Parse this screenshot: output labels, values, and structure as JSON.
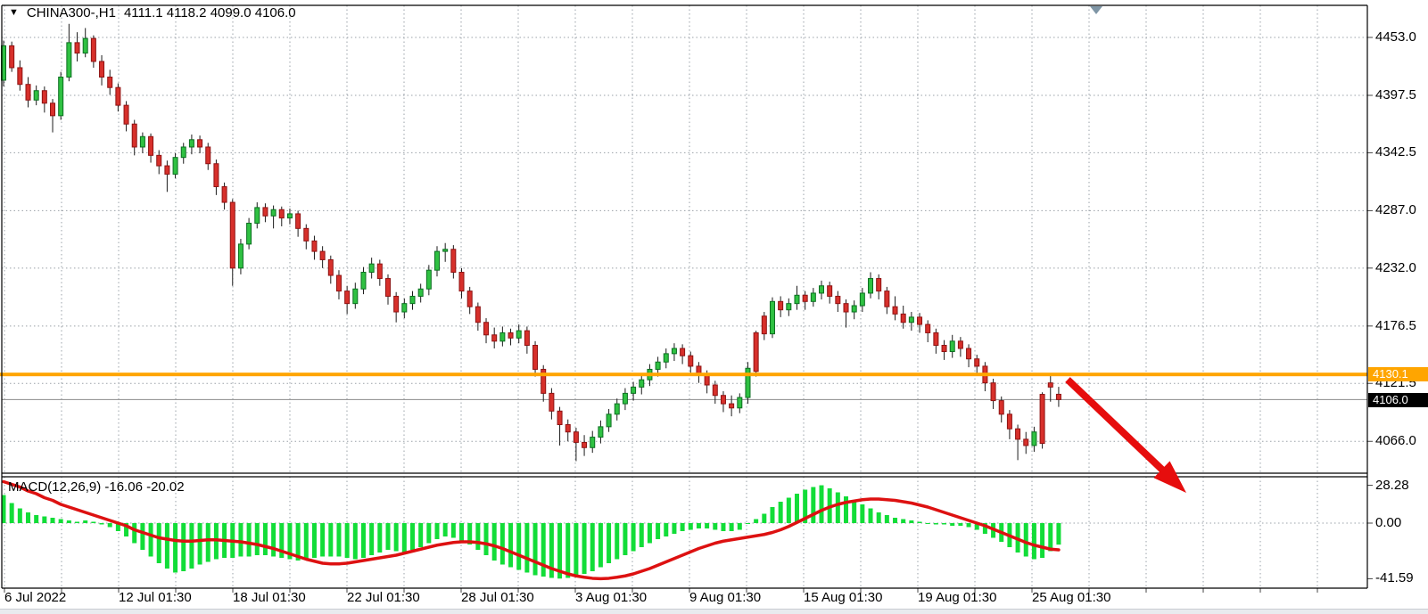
{
  "window": {
    "symbol_period": "CHINA300-,H1",
    "ohlc_text": "4111.1 4118.2 4099.0 4106.0",
    "dropdown_icon": "triangle-down"
  },
  "indicator": {
    "name": "MACD(12,26,9)",
    "values_text": "-16.06 -20.02"
  },
  "badges": {
    "hline_price": "4130.1",
    "last_price": "4106.0"
  },
  "price_axis": {
    "labels": [
      "4453.0",
      "4397.5",
      "4342.5",
      "4287.0",
      "4232.0",
      "4176.5",
      "4121.5",
      "4066.0"
    ]
  },
  "macd_axis": {
    "labels": [
      "28.28",
      "0.00",
      "-41.59"
    ]
  },
  "time_axis": {
    "labels": [
      "6 Jul 2022",
      "12 Jul 01:30",
      "18 Jul 01:30",
      "22 Jul 01:30",
      "28 Jul 01:30",
      "3 Aug 01:30",
      "9 Aug 01:30",
      "15 Aug 01:30",
      "19 Aug 01:30",
      "25 Aug 01:30"
    ]
  },
  "colors": {
    "bull": "#2fc142",
    "bull_stroke": "#0b6e20",
    "bear": "#d7302b",
    "bear_stroke": "#8e1212",
    "wick": "#1c1c1c",
    "macd_hist": "#12dd38",
    "signal": "#dd1111",
    "hline": "#ffa500",
    "last_price_line": "#8a8a8a",
    "grid": "#9aa1a8",
    "border": "#000000",
    "arrow": "#e60d0d",
    "scroll_marker": "#7e95a5",
    "badge_black_bg": "#000000",
    "badge_orange_bg": "#ffa500"
  },
  "chart_data": {
    "type": "candlestick+macd",
    "symbol": "CHINA300-",
    "timeframe": "H1",
    "title": "CHINA300-,H1",
    "legend": [
      "MACD histogram",
      "MACD signal"
    ],
    "grid": "dashed",
    "last_ohlc": {
      "open": 4111.1,
      "high": 4118.2,
      "low": 4099.0,
      "close": 4106.0
    },
    "hline_price": 4130.1,
    "last_price": 4106.0,
    "price_gridlines": [
      4453.0,
      4397.5,
      4342.5,
      4287.0,
      4232.0,
      4176.5,
      4121.5,
      4066.0
    ],
    "price_axis_range": [
      4035,
      4480
    ],
    "macd_levels": {
      "max": 28.28,
      "zero": 0.0,
      "min": -41.59
    },
    "macd_last": {
      "main": -16.06,
      "signal": -20.02
    },
    "x_labels": [
      "6 Jul 2022",
      "12 Jul 01:30",
      "18 Jul 01:30",
      "22 Jul 01:30",
      "28 Jul 01:30",
      "3 Aug 01:30",
      "9 Aug 01:30",
      "15 Aug 01:30",
      "19 Aug 01:30",
      "25 Aug 01:30"
    ],
    "candles": [
      [
        4412,
        4450,
        4406,
        4445
      ],
      [
        4445,
        4449,
        4420,
        4424
      ],
      [
        4424,
        4431,
        4402,
        4408
      ],
      [
        4408,
        4415,
        4386,
        4393
      ],
      [
        4393,
        4407,
        4388,
        4402
      ],
      [
        4402,
        4406,
        4381,
        4390
      ],
      [
        4390,
        4394,
        4362,
        4378
      ],
      [
        4378,
        4420,
        4374,
        4415
      ],
      [
        4415,
        4466,
        4411,
        4448
      ],
      [
        4448,
        4458,
        4430,
        4438
      ],
      [
        4438,
        4462,
        4434,
        4452
      ],
      [
        4452,
        4455,
        4424,
        4430
      ],
      [
        4430,
        4436,
        4407,
        4415
      ],
      [
        4415,
        4422,
        4398,
        4405
      ],
      [
        4405,
        4409,
        4382,
        4388
      ],
      [
        4388,
        4392,
        4363,
        4370
      ],
      [
        4370,
        4374,
        4340,
        4348
      ],
      [
        4348,
        4362,
        4342,
        4358
      ],
      [
        4358,
        4361,
        4333,
        4340
      ],
      [
        4340,
        4345,
        4322,
        4330
      ],
      [
        4330,
        4335,
        4305,
        4322
      ],
      [
        4322,
        4342,
        4318,
        4338
      ],
      [
        4338,
        4352,
        4332,
        4348
      ],
      [
        4348,
        4360,
        4341,
        4355
      ],
      [
        4355,
        4359,
        4342,
        4348
      ],
      [
        4348,
        4352,
        4326,
        4332
      ],
      [
        4332,
        4336,
        4302,
        4310
      ],
      [
        4310,
        4314,
        4288,
        4295
      ],
      [
        4295,
        4298,
        4215,
        4232
      ],
      [
        4232,
        4260,
        4226,
        4255
      ],
      [
        4255,
        4280,
        4250,
        4275
      ],
      [
        4275,
        4295,
        4270,
        4290
      ],
      [
        4290,
        4294,
        4276,
        4282
      ],
      [
        4282,
        4292,
        4270,
        4288
      ],
      [
        4288,
        4291,
        4272,
        4280
      ],
      [
        4280,
        4289,
        4274,
        4284
      ],
      [
        4284,
        4287,
        4262,
        4270
      ],
      [
        4270,
        4274,
        4250,
        4258
      ],
      [
        4258,
        4263,
        4240,
        4248
      ],
      [
        4248,
        4253,
        4232,
        4240
      ],
      [
        4240,
        4244,
        4217,
        4225
      ],
      [
        4225,
        4230,
        4202,
        4210
      ],
      [
        4210,
        4215,
        4188,
        4198
      ],
      [
        4198,
        4218,
        4193,
        4212
      ],
      [
        4212,
        4233,
        4207,
        4228
      ],
      [
        4228,
        4242,
        4222,
        4236
      ],
      [
        4236,
        4240,
        4215,
        4222
      ],
      [
        4222,
        4226,
        4197,
        4205
      ],
      [
        4205,
        4209,
        4180,
        4190
      ],
      [
        4190,
        4203,
        4184,
        4198
      ],
      [
        4198,
        4210,
        4192,
        4205
      ],
      [
        4205,
        4217,
        4199,
        4212
      ],
      [
        4212,
        4235,
        4206,
        4230
      ],
      [
        4230,
        4253,
        4224,
        4248
      ],
      [
        4248,
        4256,
        4238,
        4250
      ],
      [
        4250,
        4254,
        4222,
        4228
      ],
      [
        4228,
        4232,
        4203,
        4210
      ],
      [
        4210,
        4214,
        4188,
        4195
      ],
      [
        4195,
        4199,
        4172,
        4180
      ],
      [
        4180,
        4184,
        4160,
        4168
      ],
      [
        4168,
        4175,
        4155,
        4162
      ],
      [
        4162,
        4176,
        4157,
        4170
      ],
      [
        4170,
        4174,
        4158,
        4165
      ],
      [
        4165,
        4178,
        4160,
        4172
      ],
      [
        4172,
        4176,
        4150,
        4158
      ],
      [
        4158,
        4162,
        4128,
        4135
      ],
      [
        4135,
        4139,
        4104,
        4112
      ],
      [
        4112,
        4117,
        4087,
        4095
      ],
      [
        4095,
        4099,
        4062,
        4082
      ],
      [
        4082,
        4087,
        4066,
        4075
      ],
      [
        4075,
        4079,
        4047,
        4065
      ],
      [
        4065,
        4072,
        4052,
        4060
      ],
      [
        4060,
        4076,
        4055,
        4070
      ],
      [
        4070,
        4086,
        4064,
        4080
      ],
      [
        4080,
        4097,
        4075,
        4092
      ],
      [
        4092,
        4107,
        4086,
        4102
      ],
      [
        4102,
        4117,
        4096,
        4112
      ],
      [
        4112,
        4123,
        4105,
        4118
      ],
      [
        4118,
        4130,
        4111,
        4125
      ],
      [
        4125,
        4140,
        4119,
        4135
      ],
      [
        4135,
        4147,
        4128,
        4142
      ],
      [
        4142,
        4155,
        4136,
        4150
      ],
      [
        4150,
        4160,
        4143,
        4155
      ],
      [
        4155,
        4159,
        4140,
        4148
      ],
      [
        4148,
        4152,
        4130,
        4138
      ],
      [
        4138,
        4142,
        4122,
        4130
      ],
      [
        4130,
        4134,
        4112,
        4120
      ],
      [
        4120,
        4124,
        4102,
        4110
      ],
      [
        4110,
        4114,
        4094,
        4102
      ],
      [
        4102,
        4110,
        4090,
        4098
      ],
      [
        4098,
        4112,
        4093,
        4108
      ],
      [
        4108,
        4142,
        4102,
        4136
      ],
      [
        4170,
        4172,
        4128,
        4133
      ],
      [
        4186,
        4190,
        4163,
        4169
      ],
      [
        4169,
        4204,
        4165,
        4200
      ],
      [
        4200,
        4205,
        4185,
        4192
      ],
      [
        4192,
        4203,
        4186,
        4198
      ],
      [
        4198,
        4215,
        4192,
        4206
      ],
      [
        4206,
        4210,
        4192,
        4200
      ],
      [
        4200,
        4213,
        4195,
        4208
      ],
      [
        4208,
        4220,
        4202,
        4215
      ],
      [
        4215,
        4219,
        4198,
        4205
      ],
      [
        4205,
        4210,
        4190,
        4198
      ],
      [
        4198,
        4202,
        4175,
        4190
      ],
      [
        4190,
        4201,
        4183,
        4196
      ],
      [
        4196,
        4213,
        4190,
        4208
      ],
      [
        4208,
        4228,
        4203,
        4222
      ],
      [
        4222,
        4226,
        4202,
        4210
      ],
      [
        4210,
        4214,
        4188,
        4195
      ],
      [
        4195,
        4205,
        4182,
        4188
      ],
      [
        4188,
        4196,
        4174,
        4180
      ],
      [
        4180,
        4190,
        4172,
        4185
      ],
      [
        4185,
        4189,
        4170,
        4178
      ],
      [
        4178,
        4182,
        4161,
        4170
      ],
      [
        4170,
        4174,
        4150,
        4158
      ],
      [
        4158,
        4163,
        4144,
        4152
      ],
      [
        4152,
        4168,
        4146,
        4162
      ],
      [
        4162,
        4166,
        4147,
        4155
      ],
      [
        4155,
        4159,
        4137,
        4145
      ],
      [
        4145,
        4149,
        4130,
        4138
      ],
      [
        4138,
        4142,
        4114,
        4122
      ],
      [
        4122,
        4126,
        4097,
        4105
      ],
      [
        4105,
        4109,
        4084,
        4092
      ],
      [
        4092,
        4096,
        4068,
        4078
      ],
      [
        4078,
        4082,
        4048,
        4068
      ],
      [
        4068,
        4075,
        4054,
        4062
      ],
      [
        4062,
        4080,
        4056,
        4075
      ],
      [
        4111,
        4113,
        4059,
        4064
      ],
      [
        4122,
        4131,
        4104,
        4118
      ],
      [
        4111.1,
        4118.2,
        4099.0,
        4106.0
      ]
    ],
    "macd": {
      "params": "12,26,9",
      "histogram": [
        21,
        15,
        11,
        8,
        6,
        5,
        4,
        3,
        2,
        1,
        2,
        1,
        -1,
        -3,
        -6,
        -10,
        -15,
        -20,
        -25,
        -30,
        -34,
        -37,
        -36,
        -34,
        -31,
        -29,
        -27,
        -26,
        -26,
        -25,
        -25,
        -24,
        -24,
        -25,
        -26,
        -27,
        -28,
        -27,
        -26,
        -25,
        -25,
        -25,
        -26,
        -27,
        -26,
        -24,
        -22,
        -20,
        -21,
        -22,
        -20,
        -18,
        -15,
        -12,
        -10,
        -11,
        -13,
        -16,
        -20,
        -24,
        -28,
        -31,
        -33,
        -35,
        -37,
        -39,
        -40,
        -41,
        -41.5,
        -41,
        -40,
        -38,
        -36,
        -33,
        -30,
        -27,
        -24,
        -21,
        -18,
        -15,
        -12,
        -10,
        -8,
        -6,
        -5,
        -4,
        -4,
        -5,
        -6,
        -6,
        -5,
        0,
        3,
        7,
        12,
        16,
        19,
        22,
        25,
        27,
        28.3,
        26,
        23,
        20,
        17,
        14,
        11,
        8,
        6,
        4,
        3,
        2,
        1,
        0,
        -1,
        -1,
        -2,
        -2,
        -3,
        -5,
        -8,
        -11,
        -14,
        -18,
        -22,
        -25,
        -27,
        -26,
        -21,
        -16.1
      ],
      "signal": [
        31,
        29,
        27,
        24,
        22,
        19,
        17,
        14,
        12,
        10,
        8,
        6,
        4,
        2,
        0,
        -2,
        -5,
        -7,
        -9,
        -11,
        -12,
        -13,
        -13.5,
        -13.5,
        -13,
        -12.5,
        -12.5,
        -13,
        -13.5,
        -14,
        -15,
        -16,
        -17.5,
        -19,
        -21,
        -23,
        -25,
        -27,
        -28.5,
        -30,
        -30.5,
        -30.5,
        -30,
        -29,
        -28,
        -27,
        -26,
        -25,
        -24,
        -22.5,
        -21,
        -19.5,
        -18,
        -16.5,
        -15.5,
        -14.5,
        -14,
        -14,
        -14.5,
        -15.5,
        -17,
        -19,
        -21.5,
        -24,
        -26.5,
        -29,
        -31.5,
        -34,
        -36,
        -38,
        -39.5,
        -40.5,
        -41.3,
        -41.6,
        -41.3,
        -40.5,
        -39.5,
        -38,
        -36,
        -34,
        -31.5,
        -29,
        -26.5,
        -24,
        -21.5,
        -19,
        -17,
        -15,
        -13.5,
        -12.5,
        -11.5,
        -10.5,
        -9.5,
        -8.5,
        -7,
        -5,
        -2.5,
        0.5,
        3.5,
        6.5,
        9.5,
        12,
        14,
        15.5,
        16.5,
        17.5,
        18,
        18,
        17.5,
        17,
        16,
        15,
        13.5,
        12,
        10,
        8,
        6,
        4,
        2,
        0,
        -2,
        -4.5,
        -7,
        -9.5,
        -12,
        -14.5,
        -16.5,
        -18,
        -19.5,
        -20
      ]
    },
    "annotations": [
      {
        "type": "hline",
        "price": 4130.1,
        "color": "orange"
      },
      {
        "type": "arrow",
        "direction": "down-right",
        "color": "red",
        "from_price": 4125,
        "to_area": "below 4066"
      }
    ]
  }
}
